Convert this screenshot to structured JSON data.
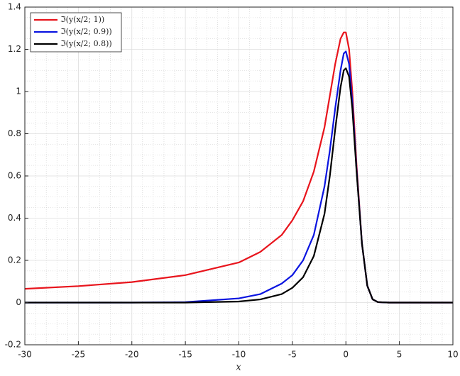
{
  "chart_data": {
    "type": "line",
    "x_label": "x",
    "x": [
      -30,
      -25,
      -20,
      -15,
      -10,
      -8,
      -6,
      -5,
      -4,
      -3,
      -2,
      -1.5,
      -1,
      -0.5,
      -0.2,
      0,
      0.3,
      0.6,
      1,
      1.5,
      2,
      2.5,
      3,
      4,
      5,
      10
    ],
    "series": [
      {
        "name": "ℑ(y(x/2; 1))",
        "color": "#e8141c",
        "values": [
          0.065,
          0.078,
          0.097,
          0.13,
          0.19,
          0.24,
          0.32,
          0.39,
          0.48,
          0.62,
          0.83,
          0.98,
          1.13,
          1.25,
          1.28,
          1.28,
          1.2,
          1.0,
          0.65,
          0.28,
          0.08,
          0.015,
          0.002,
          0,
          0,
          0
        ]
      },
      {
        "name": "ℑ(y(x/2; 0.9))",
        "color": "#0a14e0",
        "values": [
          0,
          0,
          0,
          0.002,
          0.02,
          0.04,
          0.09,
          0.13,
          0.2,
          0.32,
          0.55,
          0.72,
          0.92,
          1.1,
          1.18,
          1.19,
          1.13,
          0.95,
          0.63,
          0.28,
          0.08,
          0.015,
          0.002,
          0,
          0,
          0
        ]
      },
      {
        "name": "ℑ(y(x/2; 0.8))",
        "color": "#000000",
        "values": [
          0,
          0,
          0,
          0,
          0.005,
          0.015,
          0.04,
          0.07,
          0.12,
          0.22,
          0.42,
          0.6,
          0.82,
          1.02,
          1.1,
          1.11,
          1.07,
          0.92,
          0.62,
          0.28,
          0.08,
          0.015,
          0.002,
          0,
          0,
          0
        ]
      }
    ],
    "xlim": [
      -30,
      10
    ],
    "xticks": [
      -30,
      -25,
      -20,
      -15,
      -10,
      -5,
      0,
      5,
      10
    ],
    "ylim": [
      -0.2,
      1.4
    ],
    "yticks": [
      -0.2,
      0,
      0.2,
      0.4,
      0.6,
      0.8,
      1,
      1.2,
      1.4
    ],
    "grid": true,
    "minor_grid": true,
    "legend": "upper left"
  }
}
